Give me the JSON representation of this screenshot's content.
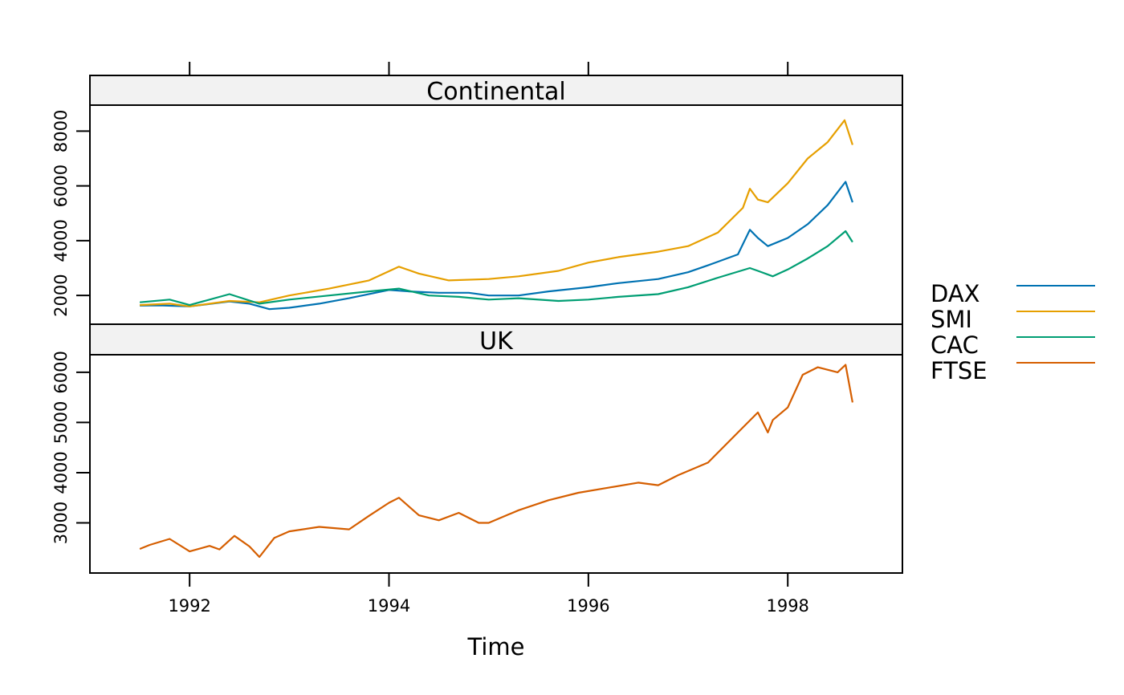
{
  "chart_data": {
    "type": "line",
    "xlabel": "Time",
    "x_ticks": [
      "1992",
      "1994",
      "1996",
      "1998"
    ],
    "x_tick_values": [
      1992,
      1994,
      1996,
      1998
    ],
    "xlim": [
      1991.0,
      1999.15
    ],
    "panels": [
      {
        "title": "Continental",
        "ylim": [
          950,
          8950
        ],
        "y_ticks": [
          2000,
          4000,
          6000,
          8000
        ],
        "y_tick_labels": [
          "2000",
          "4000",
          "6000",
          "8000"
        ],
        "series": [
          "DAX",
          "SMI",
          "CAC"
        ]
      },
      {
        "title": "UK",
        "ylim": [
          2000,
          6350
        ],
        "y_ticks": [
          3000,
          4000,
          5000,
          6000
        ],
        "y_tick_labels": [
          "3000",
          "4000",
          "5000",
          "6000"
        ],
        "series": [
          "FTSE"
        ]
      }
    ],
    "legend_position": "right",
    "series": [
      {
        "name": "DAX",
        "color": "#0072B2",
        "x": [
          1991.5,
          1991.7,
          1992.0,
          1992.4,
          1992.6,
          1992.8,
          1993.0,
          1993.3,
          1993.6,
          1994.0,
          1994.2,
          1994.5,
          1994.8,
          1995.0,
          1995.3,
          1995.6,
          1996.0,
          1996.3,
          1996.7,
          1997.0,
          1997.2,
          1997.5,
          1997.62,
          1997.7,
          1997.8,
          1998.0,
          1998.2,
          1998.4,
          1998.58,
          1998.65
        ],
        "y": [
          1630,
          1640,
          1600,
          1780,
          1700,
          1500,
          1550,
          1700,
          1900,
          2200,
          2150,
          2100,
          2100,
          2000,
          2000,
          2150,
          2300,
          2450,
          2600,
          2850,
          3100,
          3500,
          4400,
          4100,
          3800,
          4100,
          4600,
          5300,
          6150,
          5400
        ]
      },
      {
        "name": "SMI",
        "color": "#E69F00",
        "x": [
          1991.5,
          1991.8,
          1992.0,
          1992.4,
          1992.7,
          1993.0,
          1993.4,
          1993.8,
          1994.1,
          1994.3,
          1994.6,
          1995.0,
          1995.3,
          1995.7,
          1996.0,
          1996.3,
          1996.7,
          1997.0,
          1997.3,
          1997.55,
          1997.62,
          1997.7,
          1997.8,
          1998.0,
          1998.2,
          1998.4,
          1998.57,
          1998.65
        ],
        "y": [
          1650,
          1700,
          1600,
          1800,
          1750,
          2000,
          2250,
          2550,
          3050,
          2800,
          2550,
          2600,
          2700,
          2900,
          3200,
          3400,
          3600,
          3800,
          4300,
          5200,
          5900,
          5500,
          5400,
          6100,
          7000,
          7600,
          8400,
          7500
        ]
      },
      {
        "name": "CAC",
        "color": "#009E73",
        "x": [
          1991.5,
          1991.8,
          1992.0,
          1992.4,
          1992.7,
          1993.0,
          1993.4,
          1993.8,
          1994.1,
          1994.4,
          1994.7,
          1995.0,
          1995.3,
          1995.7,
          1996.0,
          1996.3,
          1996.7,
          1997.0,
          1997.3,
          1997.62,
          1997.7,
          1997.85,
          1998.0,
          1998.2,
          1998.4,
          1998.58,
          1998.65
        ],
        "y": [
          1750,
          1850,
          1650,
          2050,
          1700,
          1850,
          2000,
          2150,
          2250,
          2000,
          1950,
          1850,
          1900,
          1800,
          1850,
          1950,
          2050,
          2300,
          2650,
          3000,
          2900,
          2700,
          2950,
          3350,
          3800,
          4350,
          3950
        ]
      },
      {
        "name": "FTSE",
        "color": "#D55E00",
        "x": [
          1991.5,
          1991.6,
          1991.8,
          1992.0,
          1992.2,
          1992.3,
          1992.45,
          1992.6,
          1992.7,
          1992.85,
          1993.0,
          1993.3,
          1993.6,
          1993.8,
          1994.0,
          1994.1,
          1994.3,
          1994.5,
          1994.7,
          1994.9,
          1995.0,
          1995.3,
          1995.6,
          1995.9,
          1996.2,
          1996.5,
          1996.7,
          1996.9,
          1997.2,
          1997.5,
          1997.7,
          1997.8,
          1997.85,
          1998.0,
          1998.15,
          1998.3,
          1998.5,
          1998.58,
          1998.65
        ],
        "y": [
          2480,
          2560,
          2680,
          2430,
          2540,
          2470,
          2740,
          2530,
          2320,
          2700,
          2830,
          2920,
          2870,
          3140,
          3400,
          3500,
          3150,
          3050,
          3200,
          3000,
          3000,
          3250,
          3450,
          3600,
          3700,
          3800,
          3750,
          3950,
          4200,
          4800,
          5200,
          4800,
          5050,
          5300,
          5950,
          6100,
          6000,
          6150,
          5400
        ]
      }
    ]
  },
  "legend": {
    "items": [
      {
        "name": "DAX",
        "color": "#0072B2"
      },
      {
        "name": "SMI",
        "color": "#E69F00"
      },
      {
        "name": "CAC",
        "color": "#009E73"
      },
      {
        "name": "FTSE",
        "color": "#D55E00"
      }
    ]
  }
}
